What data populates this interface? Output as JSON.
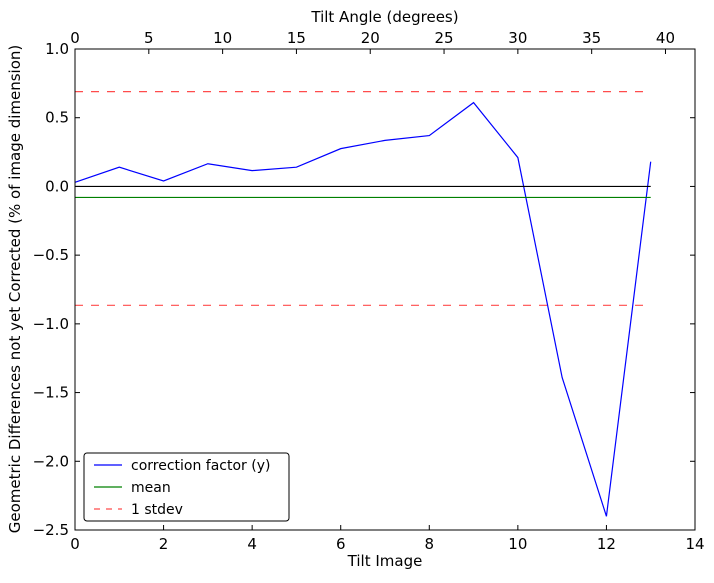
{
  "chart_data": {
    "type": "line",
    "xlabel": "Tilt Image",
    "ylabel": "Geometric Differences not yet Corrected (% of image dimension)",
    "x2label": "Tilt Angle (degrees)",
    "xlim": [
      0,
      14
    ],
    "ylim": [
      -2.5,
      1.0
    ],
    "x2lim": [
      0,
      42
    ],
    "xticks": [
      0,
      2,
      4,
      6,
      8,
      10,
      12,
      14
    ],
    "yticks": [
      -2.5,
      -2.0,
      -1.5,
      -1.0,
      -0.5,
      0.0,
      0.5,
      1.0
    ],
    "x2ticks": [
      0,
      5,
      10,
      15,
      20,
      25,
      30,
      35,
      40
    ],
    "xtick_labels": [
      "0",
      "2",
      "4",
      "6",
      "8",
      "10",
      "12",
      "14"
    ],
    "ytick_labels": [
      "−2.5",
      "−2.0",
      "−1.5",
      "−1.0",
      "−0.5",
      "0.0",
      "0.5",
      "1.0"
    ],
    "x2tick_labels": [
      "0",
      "5",
      "10",
      "15",
      "20",
      "25",
      "30",
      "35",
      "40"
    ],
    "grid": false,
    "legend_position": "lower-left",
    "series": [
      {
        "name": "correction factor (y)",
        "color": "#0000ff",
        "style": "solid",
        "x": [
          0,
          1,
          2,
          3,
          4,
          5,
          6,
          7,
          8,
          9,
          10,
          11,
          12,
          13
        ],
        "y": [
          0.03,
          0.14,
          0.04,
          0.165,
          0.115,
          0.14,
          0.275,
          0.335,
          0.37,
          0.61,
          0.21,
          -1.39,
          -2.4,
          0.18
        ]
      },
      {
        "name": "mean",
        "color": "#008000",
        "style": "solid",
        "x": [
          0,
          13
        ],
        "y": [
          -0.08,
          -0.08
        ]
      },
      {
        "name": "1 stdev",
        "color": "#ff0000",
        "style": "dashed",
        "x": [
          0,
          13
        ],
        "y": [
          0.69,
          0.69
        ]
      },
      {
        "name": "",
        "color": "#ff0000",
        "style": "dashed",
        "x": [
          0,
          13
        ],
        "y": [
          -0.865,
          -0.865
        ]
      },
      {
        "name": "",
        "color": "#000000",
        "style": "solid",
        "x": [
          0,
          13
        ],
        "y": [
          0.0,
          0.0
        ]
      }
    ],
    "legend": [
      {
        "label": "correction factor (y)",
        "color": "#0000ff",
        "style": "solid"
      },
      {
        "label": "mean",
        "color": "#008000",
        "style": "solid"
      },
      {
        "label": "1 stdev",
        "color": "#ff0000",
        "style": "dashed"
      }
    ]
  }
}
